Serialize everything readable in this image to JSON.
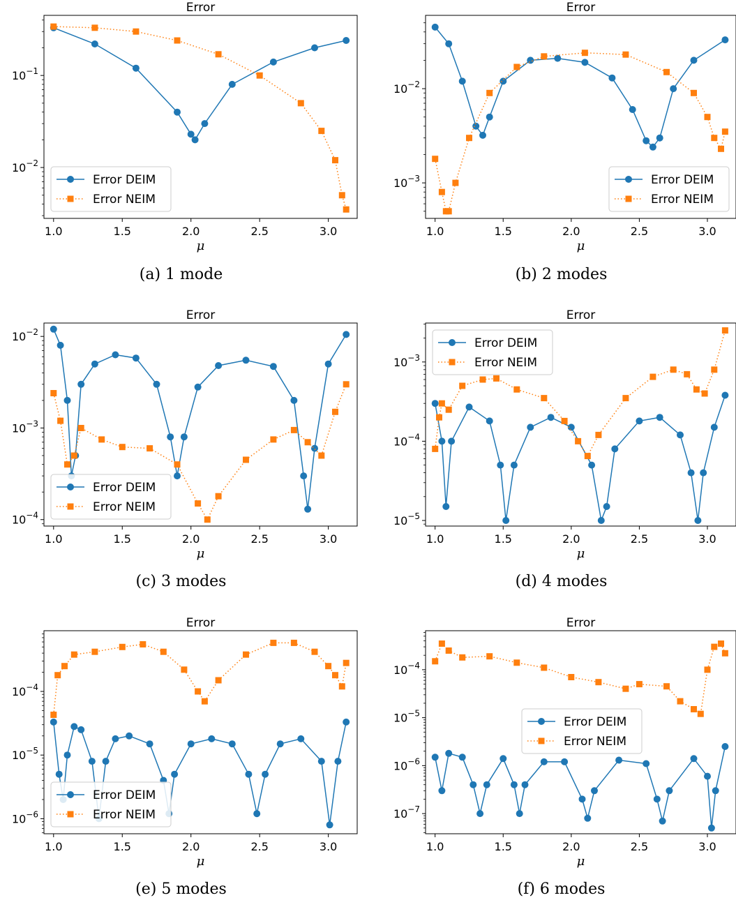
{
  "colors": {
    "deim": "#1f77b4",
    "neim": "#ff7f0e"
  },
  "chart_data": [
    {
      "type": "line",
      "title": "Error",
      "caption": "(a) 1 mode",
      "xlabel": "μ",
      "xlim": [
        0.93,
        3.21
      ],
      "xticks": [
        1.0,
        1.5,
        2.0,
        2.5,
        3.0
      ],
      "yscale": "log",
      "ylim": [
        0.0028,
        0.45
      ],
      "yticks": [
        {
          "value": 0.1,
          "base": "10",
          "exp": "−1"
        },
        {
          "value": 0.01,
          "base": "10",
          "exp": "−2"
        }
      ],
      "legend": "lower-left",
      "series": [
        {
          "name": "Error DEIM",
          "marker": "circle",
          "line": "solid",
          "x": [
            1.0,
            1.3,
            1.6,
            1.9,
            2.0,
            2.03,
            2.1,
            2.3,
            2.6,
            2.9,
            3.13
          ],
          "y": [
            0.33,
            0.22,
            0.12,
            0.04,
            0.023,
            0.02,
            0.03,
            0.08,
            0.14,
            0.2,
            0.24
          ]
        },
        {
          "name": "Error NEIM",
          "marker": "square",
          "line": "dotted",
          "x": [
            1.0,
            1.3,
            1.6,
            1.9,
            2.2,
            2.5,
            2.8,
            2.95,
            3.05,
            3.1,
            3.13
          ],
          "y": [
            0.34,
            0.33,
            0.3,
            0.24,
            0.17,
            0.1,
            0.05,
            0.025,
            0.012,
            0.005,
            0.0035
          ]
        }
      ]
    },
    {
      "type": "line",
      "title": "Error",
      "caption": "(b) 2 modes",
      "xlabel": "μ",
      "xlim": [
        0.93,
        3.21
      ],
      "xticks": [
        1.0,
        1.5,
        2.0,
        2.5,
        3.0
      ],
      "yscale": "log",
      "ylim": [
        0.00042,
        0.06
      ],
      "yticks": [
        {
          "value": 0.01,
          "base": "10",
          "exp": "−2"
        },
        {
          "value": 0.001,
          "base": "10",
          "exp": "−3"
        }
      ],
      "legend": "lower-right",
      "series": [
        {
          "name": "Error DEIM",
          "marker": "circle",
          "line": "solid",
          "x": [
            1.0,
            1.1,
            1.2,
            1.3,
            1.35,
            1.4,
            1.5,
            1.7,
            1.9,
            2.1,
            2.3,
            2.45,
            2.55,
            2.6,
            2.65,
            2.75,
            2.9,
            3.13
          ],
          "y": [
            0.045,
            0.03,
            0.012,
            0.004,
            0.0032,
            0.005,
            0.012,
            0.02,
            0.021,
            0.019,
            0.013,
            0.006,
            0.0028,
            0.0024,
            0.003,
            0.01,
            0.02,
            0.033
          ]
        },
        {
          "name": "Error NEIM",
          "marker": "square",
          "line": "dotted",
          "x": [
            1.0,
            1.05,
            1.08,
            1.1,
            1.15,
            1.25,
            1.4,
            1.6,
            1.8,
            2.1,
            2.4,
            2.7,
            2.9,
            3.0,
            3.05,
            3.1,
            3.13
          ],
          "y": [
            0.0018,
            0.0008,
            0.0005,
            0.0005,
            0.001,
            0.003,
            0.009,
            0.017,
            0.022,
            0.024,
            0.023,
            0.015,
            0.009,
            0.005,
            0.003,
            0.0023,
            0.0035
          ]
        }
      ]
    },
    {
      "type": "line",
      "title": "Error",
      "caption": "(c) 3 modes",
      "xlabel": "μ",
      "xlim": [
        0.93,
        3.21
      ],
      "xticks": [
        1.0,
        1.5,
        2.0,
        2.5,
        3.0
      ],
      "yscale": "log",
      "ylim": [
        8.5e-05,
        0.014
      ],
      "yticks": [
        {
          "value": 0.01,
          "base": "10",
          "exp": "−2"
        },
        {
          "value": 0.001,
          "base": "10",
          "exp": "−3"
        },
        {
          "value": 0.0001,
          "base": "10",
          "exp": "−4"
        }
      ],
      "legend": "lower-left",
      "series": [
        {
          "name": "Error DEIM",
          "marker": "circle",
          "line": "solid",
          "x": [
            1.0,
            1.05,
            1.1,
            1.13,
            1.16,
            1.2,
            1.3,
            1.45,
            1.6,
            1.75,
            1.85,
            1.9,
            1.95,
            2.05,
            2.2,
            2.4,
            2.6,
            2.75,
            2.82,
            2.85,
            2.9,
            3.0,
            3.13
          ],
          "y": [
            0.012,
            0.008,
            0.002,
            0.0003,
            0.0005,
            0.003,
            0.005,
            0.0063,
            0.0058,
            0.003,
            0.0008,
            0.0003,
            0.0008,
            0.0028,
            0.0048,
            0.0055,
            0.0047,
            0.002,
            0.0003,
            0.00013,
            0.0006,
            0.005,
            0.0105
          ]
        },
        {
          "name": "Error NEIM",
          "marker": "square",
          "line": "dotted",
          "x": [
            1.0,
            1.05,
            1.1,
            1.15,
            1.2,
            1.35,
            1.5,
            1.7,
            1.9,
            2.05,
            2.12,
            2.2,
            2.4,
            2.6,
            2.75,
            2.85,
            2.95,
            3.05,
            3.13
          ],
          "y": [
            0.0024,
            0.0012,
            0.0004,
            0.0005,
            0.001,
            0.00075,
            0.00062,
            0.0006,
            0.0004,
            0.00015,
            0.0001,
            0.00018,
            0.00045,
            0.00075,
            0.00095,
            0.0007,
            0.0005,
            0.0015,
            0.003
          ]
        }
      ]
    },
    {
      "type": "line",
      "title": "Error",
      "caption": "(d) 4 modes",
      "xlabel": "μ",
      "xlim": [
        0.93,
        3.21
      ],
      "xticks": [
        1.0,
        1.5,
        2.0,
        2.5,
        3.0
      ],
      "yscale": "log",
      "ylim": [
        8.5e-06,
        0.0031
      ],
      "yticks": [
        {
          "value": 0.001,
          "base": "10",
          "exp": "−3"
        },
        {
          "value": 0.0001,
          "base": "10",
          "exp": "−4"
        },
        {
          "value": 1e-05,
          "base": "10",
          "exp": "−5"
        }
      ],
      "legend": "upper-left",
      "series": [
        {
          "name": "Error DEIM",
          "marker": "circle",
          "line": "solid",
          "x": [
            1.0,
            1.05,
            1.08,
            1.12,
            1.25,
            1.4,
            1.48,
            1.52,
            1.58,
            1.7,
            1.85,
            2.0,
            2.15,
            2.22,
            2.26,
            2.32,
            2.5,
            2.65,
            2.8,
            2.88,
            2.93,
            2.97,
            3.05,
            3.13
          ],
          "y": [
            0.0003,
            0.0001,
            1.5e-05,
            0.0001,
            0.00027,
            0.00018,
            5e-05,
            1e-05,
            5e-05,
            0.00015,
            0.0002,
            0.00015,
            5e-05,
            1e-05,
            1.5e-05,
            8e-05,
            0.00018,
            0.0002,
            0.00012,
            4e-05,
            1e-05,
            4e-05,
            0.00015,
            0.00038
          ]
        },
        {
          "name": "Error NEIM",
          "marker": "square",
          "line": "dotted",
          "x": [
            1.0,
            1.03,
            1.05,
            1.1,
            1.2,
            1.35,
            1.45,
            1.6,
            1.8,
            1.95,
            2.05,
            2.12,
            2.2,
            2.4,
            2.6,
            2.75,
            2.85,
            2.92,
            2.98,
            3.05,
            3.13
          ],
          "y": [
            8e-05,
            0.0002,
            0.0003,
            0.00025,
            0.0005,
            0.0006,
            0.00062,
            0.00045,
            0.00035,
            0.00018,
            0.0001,
            6.5e-05,
            0.00012,
            0.00035,
            0.00065,
            0.0008,
            0.0007,
            0.00045,
            0.0004,
            0.0008,
            0.0025
          ]
        }
      ]
    },
    {
      "type": "line",
      "title": "Error",
      "caption": "(e) 5 modes",
      "xlabel": "μ",
      "xlim": [
        0.93,
        3.21
      ],
      "xticks": [
        1.0,
        1.5,
        2.0,
        2.5,
        3.0
      ],
      "yscale": "log",
      "ylim": [
        5.8e-07,
        0.0009
      ],
      "yticks": [
        {
          "value": 0.0001,
          "base": "10",
          "exp": "−4"
        },
        {
          "value": 1e-05,
          "base": "10",
          "exp": "−5"
        },
        {
          "value": 1e-06,
          "base": "10",
          "exp": "−6"
        }
      ],
      "legend": "lower-left",
      "series": [
        {
          "name": "Error DEIM",
          "marker": "circle",
          "line": "solid",
          "x": [
            1.0,
            1.04,
            1.07,
            1.1,
            1.15,
            1.2,
            1.28,
            1.33,
            1.38,
            1.45,
            1.55,
            1.7,
            1.8,
            1.84,
            1.88,
            2.0,
            2.15,
            2.3,
            2.42,
            2.48,
            2.54,
            2.65,
            2.8,
            2.95,
            3.01,
            3.07,
            3.13
          ],
          "y": [
            3.3e-05,
            5e-06,
            2e-06,
            1e-05,
            2.8e-05,
            2.5e-05,
            8e-06,
            1e-06,
            8e-06,
            1.8e-05,
            2e-05,
            1.5e-05,
            4e-06,
            1.2e-06,
            5e-06,
            1.5e-05,
            1.8e-05,
            1.5e-05,
            5e-06,
            1.2e-06,
            5e-06,
            1.5e-05,
            1.8e-05,
            8e-06,
            8e-07,
            8e-06,
            3.3e-05
          ]
        },
        {
          "name": "Error NEIM",
          "marker": "square",
          "line": "dotted",
          "x": [
            1.0,
            1.03,
            1.08,
            1.15,
            1.3,
            1.5,
            1.65,
            1.8,
            1.95,
            2.05,
            2.1,
            2.2,
            2.4,
            2.6,
            2.75,
            2.9,
            3.0,
            3.05,
            3.1,
            3.13
          ],
          "y": [
            4.3e-05,
            0.00018,
            0.00025,
            0.00038,
            0.00042,
            0.0005,
            0.00055,
            0.00042,
            0.00022,
            0.0001,
            7e-05,
            0.00015,
            0.00038,
            0.00058,
            0.00058,
            0.00042,
            0.00025,
            0.00018,
            0.00012,
            0.00028
          ]
        }
      ]
    },
    {
      "type": "line",
      "title": "Error",
      "caption": "(f) 6 modes",
      "xlabel": "μ",
      "xlim": [
        0.93,
        3.21
      ],
      "xticks": [
        1.0,
        1.5,
        2.0,
        2.5,
        3.0
      ],
      "yscale": "log",
      "ylim": [
        3.8e-08,
        0.00065
      ],
      "yticks": [
        {
          "value": 0.0001,
          "base": "10",
          "exp": "−4"
        },
        {
          "value": 1e-05,
          "base": "10",
          "exp": "−5"
        },
        {
          "value": 1e-06,
          "base": "10",
          "exp": "−6"
        },
        {
          "value": 1e-07,
          "base": "10",
          "exp": "−7"
        }
      ],
      "legend": "center",
      "series": [
        {
          "name": "Error DEIM",
          "marker": "circle",
          "line": "solid",
          "x": [
            1.0,
            1.05,
            1.1,
            1.2,
            1.28,
            1.33,
            1.38,
            1.5,
            1.58,
            1.62,
            1.66,
            1.8,
            1.95,
            2.08,
            2.12,
            2.17,
            2.35,
            2.55,
            2.63,
            2.67,
            2.72,
            2.9,
            3.0,
            3.03,
            3.06,
            3.13
          ],
          "y": [
            1.5e-06,
            3e-07,
            1.8e-06,
            1.5e-06,
            4e-07,
            1e-07,
            4e-07,
            1.4e-06,
            4e-07,
            1e-07,
            4e-07,
            1.2e-06,
            1.2e-06,
            2e-07,
            8e-08,
            3e-07,
            1.3e-06,
            1.1e-06,
            2e-07,
            7e-08,
            3e-07,
            1.4e-06,
            6e-07,
            5e-08,
            3e-07,
            2.5e-06
          ]
        },
        {
          "name": "Error NEIM",
          "marker": "square",
          "line": "dotted",
          "x": [
            1.0,
            1.05,
            1.1,
            1.2,
            1.4,
            1.6,
            1.8,
            2.0,
            2.2,
            2.4,
            2.5,
            2.7,
            2.8,
            2.9,
            2.95,
            3.0,
            3.05,
            3.1,
            3.13
          ],
          "y": [
            0.00015,
            0.00035,
            0.00025,
            0.00018,
            0.00019,
            0.00014,
            0.00011,
            7e-05,
            5.5e-05,
            4e-05,
            5e-05,
            4.5e-05,
            2.2e-05,
            1.5e-05,
            1.2e-05,
            0.0001,
            0.0003,
            0.00035,
            0.00022
          ]
        }
      ]
    }
  ]
}
